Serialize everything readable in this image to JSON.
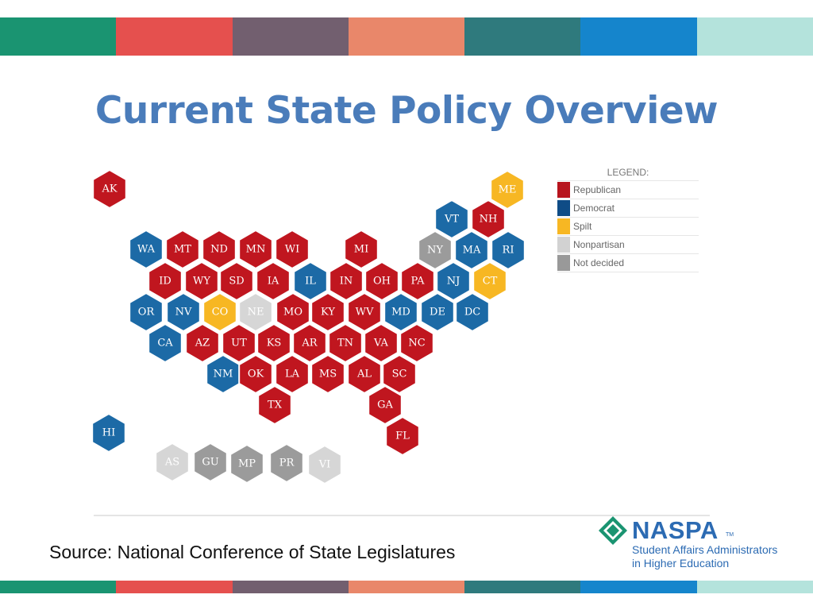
{
  "title": "Current State Policy Overview",
  "source": "Source: National Conference of State Legislatures",
  "stripe_colors": [
    "#1a9471",
    "#e5504e",
    "#725f6f",
    "#e9876a",
    "#2f7a7d",
    "#1585cc",
    "#b4e3dc"
  ],
  "legend": {
    "title": "LEGEND:",
    "items": [
      {
        "label": "Republican",
        "color": "#b7141d"
      },
      {
        "label": "Democrat",
        "color": "#0f4c86"
      },
      {
        "label": "Spilt",
        "color": "#f7b723"
      },
      {
        "label": "Nonpartisan",
        "color": "#d2d2d2"
      },
      {
        "label": "Not decided",
        "color": "#999999"
      }
    ]
  },
  "party_colors": {
    "R": "#c0161f",
    "D": "#1c6aa6",
    "S": "#f7b723",
    "N": "#d6d6d6",
    "U": "#9b9b9b"
  },
  "states": [
    {
      "abbr": "AK",
      "party": "R"
    },
    {
      "abbr": "ME",
      "party": "S"
    },
    {
      "abbr": "VT",
      "party": "D"
    },
    {
      "abbr": "NH",
      "party": "R"
    },
    {
      "abbr": "WA",
      "party": "D"
    },
    {
      "abbr": "MT",
      "party": "R"
    },
    {
      "abbr": "ND",
      "party": "R"
    },
    {
      "abbr": "MN",
      "party": "R"
    },
    {
      "abbr": "WI",
      "party": "R"
    },
    {
      "abbr": "MI",
      "party": "R"
    },
    {
      "abbr": "NY",
      "party": "U"
    },
    {
      "abbr": "MA",
      "party": "D"
    },
    {
      "abbr": "RI",
      "party": "D"
    },
    {
      "abbr": "ID",
      "party": "R"
    },
    {
      "abbr": "WY",
      "party": "R"
    },
    {
      "abbr": "SD",
      "party": "R"
    },
    {
      "abbr": "IA",
      "party": "R"
    },
    {
      "abbr": "IL",
      "party": "D"
    },
    {
      "abbr": "IN",
      "party": "R"
    },
    {
      "abbr": "OH",
      "party": "R"
    },
    {
      "abbr": "PA",
      "party": "R"
    },
    {
      "abbr": "NJ",
      "party": "D"
    },
    {
      "abbr": "CT",
      "party": "S"
    },
    {
      "abbr": "OR",
      "party": "D"
    },
    {
      "abbr": "NV",
      "party": "D"
    },
    {
      "abbr": "CO",
      "party": "S"
    },
    {
      "abbr": "NE",
      "party": "N"
    },
    {
      "abbr": "MO",
      "party": "R"
    },
    {
      "abbr": "KY",
      "party": "R"
    },
    {
      "abbr": "WV",
      "party": "R"
    },
    {
      "abbr": "MD",
      "party": "D"
    },
    {
      "abbr": "DE",
      "party": "D"
    },
    {
      "abbr": "DC",
      "party": "D"
    },
    {
      "abbr": "CA",
      "party": "D"
    },
    {
      "abbr": "AZ",
      "party": "R"
    },
    {
      "abbr": "UT",
      "party": "R"
    },
    {
      "abbr": "KS",
      "party": "R"
    },
    {
      "abbr": "AR",
      "party": "R"
    },
    {
      "abbr": "TN",
      "party": "R"
    },
    {
      "abbr": "VA",
      "party": "R"
    },
    {
      "abbr": "NC",
      "party": "R"
    },
    {
      "abbr": "NM",
      "party": "D"
    },
    {
      "abbr": "OK",
      "party": "R"
    },
    {
      "abbr": "LA",
      "party": "R"
    },
    {
      "abbr": "MS",
      "party": "R"
    },
    {
      "abbr": "AL",
      "party": "R"
    },
    {
      "abbr": "SC",
      "party": "R"
    },
    {
      "abbr": "TX",
      "party": "R"
    },
    {
      "abbr": "GA",
      "party": "R"
    },
    {
      "abbr": "FL",
      "party": "R"
    },
    {
      "abbr": "HI",
      "party": "D"
    },
    {
      "abbr": "AS",
      "party": "N"
    },
    {
      "abbr": "GU",
      "party": "U"
    },
    {
      "abbr": "MP",
      "party": "U"
    },
    {
      "abbr": "PR",
      "party": "U"
    },
    {
      "abbr": "VI",
      "party": "N"
    }
  ],
  "logo": {
    "name": "NASPA",
    "tm": "TM",
    "tagline_1": "Student Affairs Administrators",
    "tagline_2": "in Higher Education"
  }
}
